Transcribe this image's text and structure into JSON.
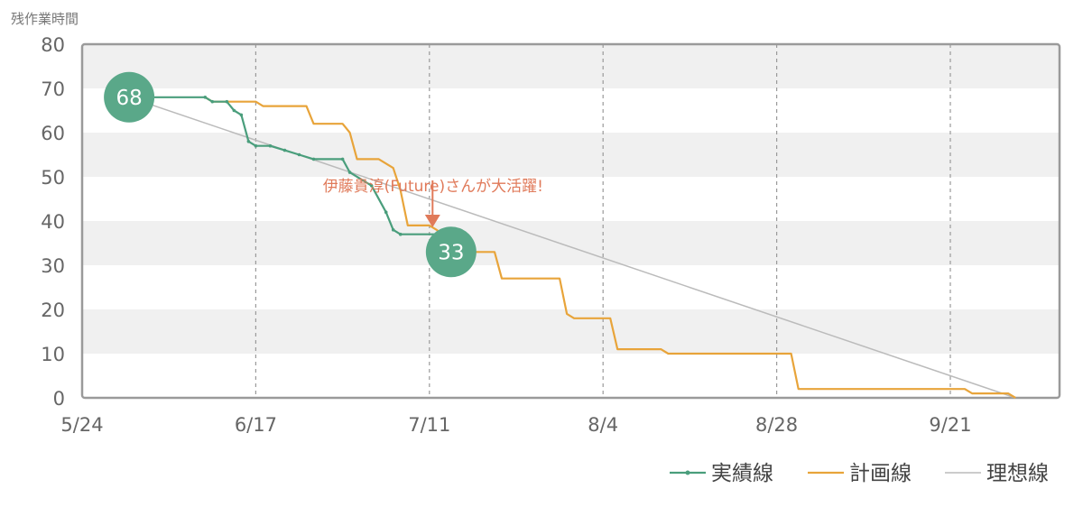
{
  "chart_data": {
    "type": "line",
    "ylabel": "残作業時間",
    "xlabel": "",
    "ylim": [
      0,
      80
    ],
    "yticks": [
      0,
      10,
      20,
      30,
      40,
      50,
      60,
      70,
      80
    ],
    "xticks": [
      "5/24",
      "6/17",
      "7/11",
      "8/4",
      "8/28",
      "9/21"
    ],
    "x_tick_days": [
      0,
      24,
      48,
      72,
      96,
      120
    ],
    "xlim_days": [
      0,
      135
    ],
    "grid": "horizontal bands + vertical dashed lines",
    "legend_position": "bottom-right",
    "series": [
      {
        "name": "実績線",
        "color": "#4a9e7c",
        "marker": "dot",
        "points": [
          [
            6.5,
            68
          ],
          [
            17,
            68
          ],
          [
            18,
            67
          ],
          [
            20,
            67
          ],
          [
            21,
            65
          ],
          [
            22,
            64
          ],
          [
            23,
            58
          ],
          [
            24,
            57
          ],
          [
            26,
            57
          ],
          [
            28,
            56
          ],
          [
            30,
            55
          ],
          [
            32,
            54
          ],
          [
            36,
            54
          ],
          [
            37,
            51
          ],
          [
            40,
            48
          ],
          [
            42,
            42
          ],
          [
            43,
            38
          ],
          [
            44,
            37
          ],
          [
            50,
            37
          ],
          [
            51,
            33
          ]
        ]
      },
      {
        "name": "計画線",
        "color": "#e8a43a",
        "marker": "none",
        "points": [
          [
            17,
            68
          ],
          [
            18,
            67
          ],
          [
            24,
            67
          ],
          [
            25,
            66
          ],
          [
            31,
            66
          ],
          [
            32,
            62
          ],
          [
            36,
            62
          ],
          [
            37,
            60
          ],
          [
            38,
            54
          ],
          [
            41,
            54
          ],
          [
            42,
            53
          ],
          [
            43,
            52
          ],
          [
            44,
            47
          ],
          [
            45,
            39
          ],
          [
            48,
            39
          ],
          [
            49,
            38
          ],
          [
            53,
            33
          ],
          [
            57,
            33
          ],
          [
            58,
            27
          ],
          [
            66,
            27
          ],
          [
            67,
            19
          ],
          [
            68,
            18
          ],
          [
            73,
            18
          ],
          [
            74,
            11
          ],
          [
            80,
            11
          ],
          [
            81,
            10
          ],
          [
            98,
            10
          ],
          [
            99,
            2
          ],
          [
            122,
            2
          ],
          [
            123,
            1
          ],
          [
            128,
            1
          ],
          [
            129,
            0
          ]
        ]
      },
      {
        "name": "理想線",
        "color": "#bbbbbb",
        "marker": "none",
        "points": [
          [
            6.5,
            68
          ],
          [
            129,
            0
          ]
        ]
      }
    ],
    "highlights": [
      {
        "label": "68",
        "x": 6.5,
        "y": 68,
        "color": "#5aa889"
      },
      {
        "label": "33",
        "x": 51,
        "y": 33,
        "color": "#5aa889"
      }
    ],
    "annotations": [
      {
        "text": "伊藤貴淳(Future)さんが大活躍!",
        "x": 48.5,
        "y": 42.5,
        "color": "#e07a5a"
      }
    ]
  }
}
